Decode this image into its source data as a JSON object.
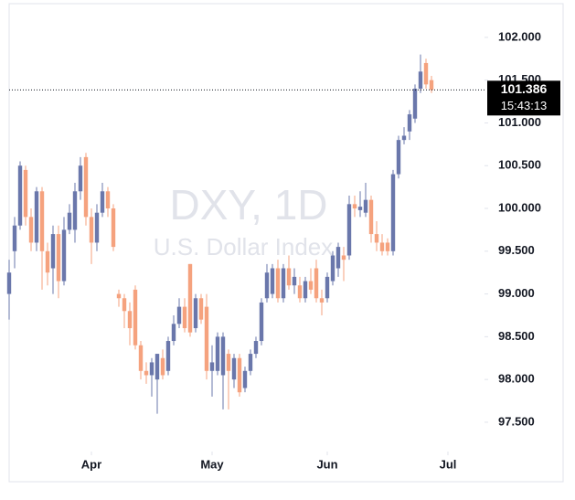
{
  "chart_data": {
    "type": "candlestick",
    "watermark": "DXY, 1D",
    "subtitle": "U.S. Dollar Index",
    "open": [
      99.0,
      99.5,
      99.8,
      100.45,
      99.9,
      99.6,
      100.2,
      99.5,
      99.3,
      99.7,
      99.15,
      99.75,
      99.75,
      100.2,
      100.6,
      99.9,
      99.6,
      99.95,
      100.2,
      100.0,
      99.0,
      98.95,
      98.8,
      99.05,
      98.4,
      98.1,
      98.05,
      98.0,
      98.25,
      98.1,
      98.45,
      98.65,
      98.85,
      99.35,
      98.6,
      98.95,
      98.85,
      98.1,
      98.1,
      98.05,
      98.3,
      98.0,
      98.25,
      97.9,
      98.1,
      98.3,
      98.45,
      98.95,
      99.0,
      99.3,
      98.95,
      99.3,
      99.1,
      99.1,
      98.95,
      99.15,
      99.3,
      98.95,
      98.95,
      99.15,
      99.3,
      99.45,
      99.45,
      100.05,
      99.98,
      99.95,
      100.1,
      99.7,
      99.6,
      99.6,
      99.5,
      100.4,
      100.8,
      100.9,
      101.05,
      101.4,
      101.7,
      101.5
    ],
    "high": [
      99.4,
      99.9,
      100.55,
      100.5,
      100.0,
      100.25,
      100.25,
      99.6,
      99.8,
      99.8,
      99.9,
      100.05,
      100.3,
      100.6,
      100.65,
      100.0,
      100.05,
      100.3,
      100.25,
      100.05,
      99.05,
      99.0,
      98.9,
      99.1,
      98.45,
      98.2,
      98.25,
      98.3,
      98.35,
      98.5,
      98.75,
      98.95,
      98.95,
      99.35,
      99.0,
      99.0,
      99.0,
      98.4,
      98.55,
      98.55,
      98.35,
      98.3,
      98.3,
      98.15,
      98.35,
      98.5,
      98.95,
      99.35,
      99.35,
      99.4,
      99.35,
      99.45,
      99.3,
      99.2,
      99.2,
      99.3,
      99.4,
      99.05,
      99.25,
      99.5,
      99.6,
      99.55,
      100.15,
      100.15,
      100.2,
      100.3,
      100.15,
      99.85,
      99.7,
      99.65,
      100.45,
      100.85,
      100.95,
      101.15,
      101.45,
      101.8,
      101.75,
      101.55
    ],
    "low": [
      98.7,
      99.3,
      99.75,
      99.8,
      99.5,
      99.5,
      99.05,
      99.1,
      99.0,
      98.95,
      99.1,
      99.7,
      99.6,
      100.1,
      99.8,
      99.35,
      99.5,
      99.9,
      99.9,
      99.5,
      98.85,
      98.6,
      98.4,
      98.35,
      98.0,
      97.95,
      97.8,
      97.6,
      98.0,
      98.05,
      98.4,
      98.6,
      98.55,
      98.5,
      98.55,
      98.65,
      98.0,
      97.8,
      98.05,
      97.65,
      97.65,
      97.9,
      97.8,
      97.85,
      98.05,
      98.25,
      98.4,
      98.9,
      98.95,
      98.9,
      98.9,
      99.05,
      99.0,
      98.9,
      98.9,
      99.0,
      98.9,
      98.75,
      98.9,
      99.1,
      99.2,
      99.15,
      99.4,
      99.9,
      99.9,
      99.9,
      99.6,
      99.5,
      99.45,
      99.45,
      99.45,
      100.35,
      100.75,
      100.8,
      101.0,
      101.35,
      101.4,
      101.35
    ],
    "close": [
      99.25,
      99.8,
      100.5,
      99.9,
      99.6,
      100.2,
      99.5,
      99.25,
      99.7,
      99.15,
      99.75,
      99.95,
      100.2,
      100.5,
      99.9,
      99.6,
      99.95,
      100.2,
      100.0,
      99.55,
      98.95,
      98.8,
      98.6,
      98.4,
      98.1,
      98.05,
      98.2,
      98.3,
      98.05,
      98.45,
      98.65,
      98.85,
      98.6,
      98.55,
      98.95,
      98.7,
      98.1,
      98.2,
      98.5,
      98.5,
      98.1,
      98.25,
      97.85,
      98.1,
      98.3,
      98.45,
      98.9,
      99.25,
      99.3,
      98.95,
      99.3,
      99.1,
      99.2,
      98.95,
      99.15,
      99.05,
      98.95,
      98.9,
      99.2,
      99.45,
      99.55,
      99.4,
      100.05,
      100.0,
      100.02,
      100.1,
      99.7,
      99.6,
      99.5,
      99.5,
      100.4,
      100.8,
      100.85,
      101.1,
      101.4,
      101.6,
      101.45,
      101.386
    ],
    "up_color": "#6a77ab",
    "down_color": "#f5a27e",
    "xlim": [
      0,
      86
    ],
    "xticks": [
      {
        "value": 15,
        "label": "Apr"
      },
      {
        "value": 37,
        "label": "May"
      },
      {
        "value": 58,
        "label": "Jun"
      },
      {
        "value": 80,
        "label": "Jul"
      }
    ],
    "ylim": [
      97.2,
      102.33
    ],
    "yticks": [
      {
        "value": 97.5,
        "label": "97.500"
      },
      {
        "value": 98,
        "label": "98.000"
      },
      {
        "value": 98.5,
        "label": "98.500"
      },
      {
        "value": 99,
        "label": "99.000"
      },
      {
        "value": 99.5,
        "label": "99.500"
      },
      {
        "value": 100,
        "label": "100.000"
      },
      {
        "value": 100.5,
        "label": "100.500"
      },
      {
        "value": 101,
        "label": "101.000"
      },
      {
        "value": 101.5,
        "label": "101.500"
      },
      {
        "value": 102,
        "label": "102.000"
      }
    ],
    "last_price": 101.386,
    "last_time": "15:43:13",
    "grid": false
  }
}
